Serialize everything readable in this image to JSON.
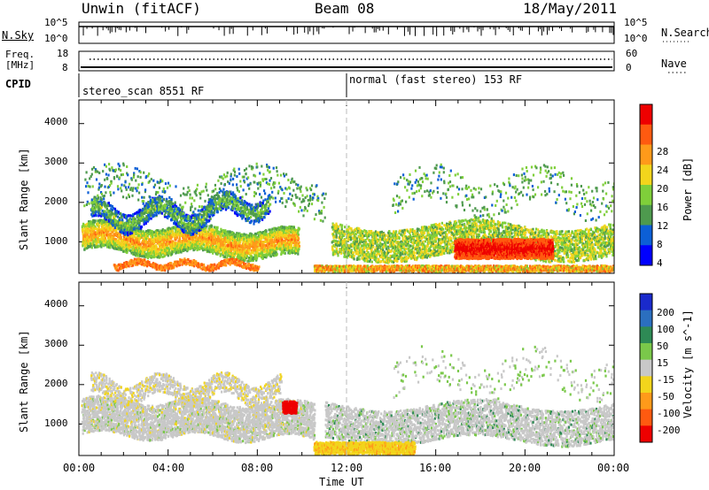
{
  "header": {
    "station": "Unwin (fitACF)",
    "beam": "Beam 08",
    "date": "18/May/2011"
  },
  "status_panels": {
    "nsky_label": "N.Sky",
    "nsearch_label": "N.Search",
    "nsky_ticks": [
      "10^5",
      "10^0"
    ],
    "nsearch_ticks": [
      "10^5",
      "10^0"
    ],
    "freq_label_line1": "Freq.",
    "freq_label_line2": "[MHz]",
    "freq_ticks": [
      "18",
      "8"
    ],
    "nave_label": "Nave",
    "nave_ticks": [
      "60",
      "0"
    ],
    "cpid_label": "CPID",
    "cpid_segments": [
      {
        "label": "stereo_scan 8551 RF",
        "start_hour": 0
      },
      {
        "label": "normal (fast stereo) 153 RF",
        "start_hour": 12
      }
    ]
  },
  "chart_data": [
    {
      "type": "heatmap",
      "title": "",
      "ylabel": "Slant Range [km]",
      "xlabel": "",
      "xlim": [
        0,
        24
      ],
      "ylim": [
        200,
        4600
      ],
      "yticks": [
        "1000",
        "2000",
        "3000",
        "4000"
      ],
      "colorbar": {
        "label": "Power [dB]",
        "ticks": [
          "28",
          "24",
          "20",
          "16",
          "12",
          "8",
          "4"
        ],
        "colors": [
          "#0000ff",
          "#0c5fd6",
          "#4e9a4e",
          "#7fcf3a",
          "#f2d51c",
          "#ff9a1a",
          "#ff5a10",
          "#ee0000"
        ]
      },
      "regions": [
        {
          "x": [
            0.1,
            10.0
          ],
          "y": [
            600,
            1700
          ],
          "value": 24
        },
        {
          "x": [
            0.5,
            9.0
          ],
          "y": [
            1500,
            2500
          ],
          "value": 14
        },
        {
          "x": [
            11.5,
            24.0
          ],
          "y": [
            600,
            1500
          ],
          "value": 18
        },
        {
          "x": [
            17.0,
            21.0
          ],
          "y": [
            600,
            1200
          ],
          "value": 28
        }
      ]
    },
    {
      "type": "heatmap",
      "title": "",
      "ylabel": "Slant Range [km]",
      "xlabel": "Time UT",
      "xlim": [
        0,
        24
      ],
      "ylim": [
        200,
        4600
      ],
      "yticks": [
        "1000",
        "2000",
        "3000",
        "4000"
      ],
      "xticks": [
        "00:00",
        "04:00",
        "08:00",
        "12:00",
        "16:00",
        "20:00",
        "00:00"
      ],
      "colorbar": {
        "label": "Velocity [m s^-1]",
        "ticks": [
          "200",
          "100",
          "50",
          "15",
          "-15",
          "-50",
          "-100",
          "-200"
        ],
        "colors": [
          "#1a2acc",
          "#2b6fbf",
          "#2e8a55",
          "#7ac84a",
          "#c8c8c8",
          "#f2d51c",
          "#ff9a1a",
          "#ff5a10",
          "#ee0000"
        ]
      },
      "regions": [
        {
          "x": [
            0.1,
            10.5
          ],
          "y": [
            600,
            2500
          ],
          "value": 0
        },
        {
          "x": [
            11.0,
            24.0
          ],
          "y": [
            600,
            1700
          ],
          "value": 0
        },
        {
          "x": [
            10.5,
            14.5
          ],
          "y": [
            300,
            700
          ],
          "value": -50
        },
        {
          "x": [
            9.1,
            9.7
          ],
          "y": [
            1300,
            1600
          ],
          "value": -200
        }
      ]
    }
  ]
}
